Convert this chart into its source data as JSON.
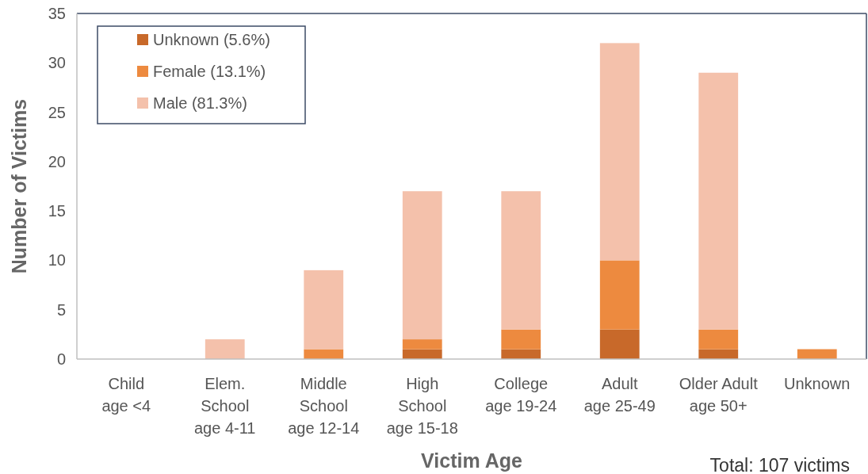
{
  "chart_data": {
    "type": "bar",
    "stacked": true,
    "xlabel": "Victim Age",
    "ylabel": "Number of Victims",
    "categories": [
      "Child\nage <4",
      "Elem.\nSchool\nage 4-11",
      "Middle\nSchool\nage 12-14",
      "High\nSchool\nage 15-18",
      "College\nage 19-24",
      "Adult\nage 25-49",
      "Older Adult\nage 50+",
      "Unknown"
    ],
    "series": [
      {
        "name": "Unknown (5.6%)",
        "color": "#c8692a",
        "values": [
          0,
          0,
          0,
          1,
          1,
          3,
          1,
          0
        ]
      },
      {
        "name": "Female (13.1%)",
        "color": "#ed8a3f",
        "values": [
          0,
          0,
          1,
          1,
          2,
          7,
          2,
          1
        ]
      },
      {
        "name": "Male (81.3%)",
        "color": "#f4c1ab",
        "values": [
          0,
          2,
          8,
          15,
          14,
          22,
          26,
          0
        ]
      }
    ],
    "ylim": [
      0,
      35
    ],
    "yticks": [
      0,
      5,
      10,
      15,
      20,
      25,
      30,
      35
    ],
    "grid": false,
    "legend": "top left",
    "annotations": [
      "Total: 107 victims"
    ]
  }
}
